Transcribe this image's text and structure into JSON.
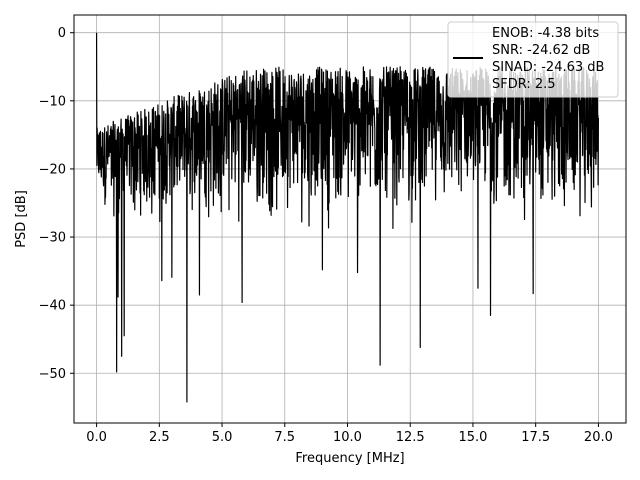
{
  "chart_data": {
    "type": "line",
    "title": "",
    "xlabel": "Frequency [MHz]",
    "ylabel": "PSD [dB]",
    "xlim": [
      -0.9,
      21.1
    ],
    "ylim": [
      -57.3,
      2.6
    ],
    "x_ticks": [
      0.0,
      2.5,
      5.0,
      7.5,
      10.0,
      12.5,
      15.0,
      17.5,
      20.0
    ],
    "x_tick_labels": [
      "0.0",
      "2.5",
      "5.0",
      "7.5",
      "10.0",
      "12.5",
      "15.0",
      "17.5",
      "20.0"
    ],
    "y_ticks": [
      0,
      -10,
      -20,
      -30,
      -40,
      -50
    ],
    "y_tick_labels": [
      "0",
      "−10",
      "−20",
      "−30",
      "−40",
      "−50"
    ],
    "grid": true,
    "legend_position": "top-right",
    "legend_lines": [
      "ENOB: -4.38 bits",
      "SNR: -24.62 dB",
      "SINAD: -24.63 dB",
      "SFDR: 2.5"
    ],
    "line_color": "#000000",
    "series": [
      {
        "x_start": 0,
        "x_end": 20,
        "peak": [
          0,
          0
        ],
        "noise_envelope": {
          "upper_typical": [
            -14,
            -5
          ],
          "lower_typical": [
            -30,
            -22
          ]
        },
        "deep_nulls": [
          [
            0.8,
            -49.8
          ],
          [
            1.0,
            -47.5
          ],
          [
            1.1,
            -44.5
          ],
          [
            0.85,
            -38.8
          ],
          [
            2.6,
            -36.4
          ],
          [
            3.0,
            -35.9
          ],
          [
            3.6,
            -54.2
          ],
          [
            4.1,
            -38.5
          ],
          [
            5.8,
            -39.6
          ],
          [
            9.0,
            -34.8
          ],
          [
            10.4,
            -35.2
          ],
          [
            11.3,
            -48.8
          ],
          [
            12.9,
            -46.2
          ],
          [
            15.2,
            -37.5
          ],
          [
            15.7,
            -41.5
          ],
          [
            17.4,
            -38.3
          ]
        ]
      }
    ]
  }
}
